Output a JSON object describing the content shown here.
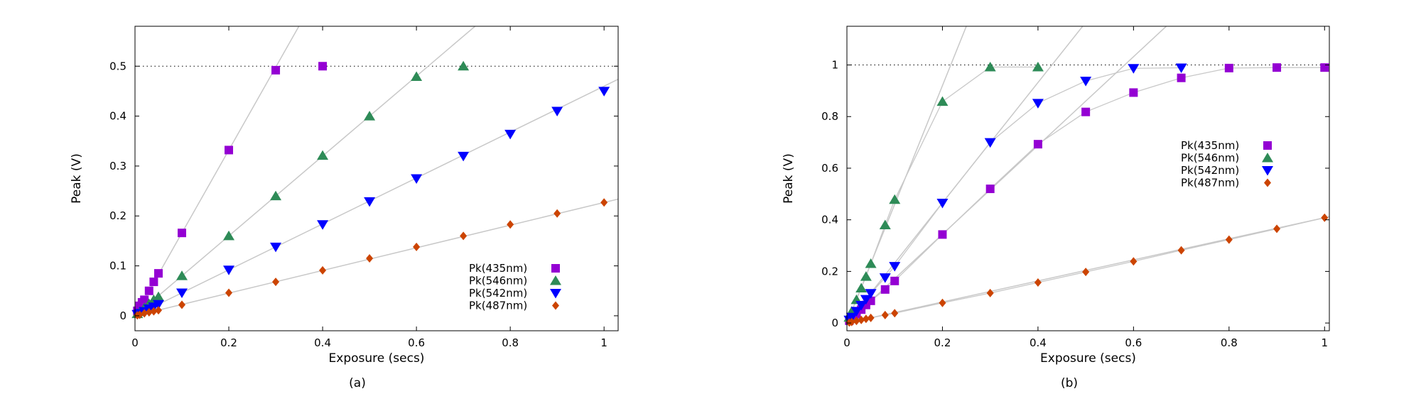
{
  "colors": {
    "Pk(435nm)": "#9400d3",
    "Pk(546nm)": "#2e8b57",
    "Pk(542nm)": "#0000ff",
    "Pk(487nm)": "#cc4400",
    "fit_line": "#c8c8c8",
    "reference_line": "#000000"
  },
  "chart_data": [
    {
      "type": "scatter",
      "caption": "(a)",
      "xlabel": "Exposure (secs)",
      "ylabel": "Peak (V)",
      "xlim": [
        0,
        1.03
      ],
      "ylim": [
        -0.03,
        0.58
      ],
      "xticks": [
        0,
        0.2,
        0.4,
        0.6,
        0.8,
        1
      ],
      "xtick_labels": [
        "0",
        "0.2",
        "0.4",
        "0.6",
        "0.8",
        "1"
      ],
      "yticks": [
        0,
        0.1,
        0.2,
        0.3,
        0.4,
        0.5
      ],
      "ytick_labels": [
        "0",
        "0.1",
        "0.2",
        "0.3",
        "0.4",
        "0.5"
      ],
      "reference_y": 0.5,
      "legend_position": "bottom-right",
      "series": [
        {
          "name": "Pk(435nm)",
          "marker": "square",
          "x": [
            0.005,
            0.01,
            0.015,
            0.02,
            0.03,
            0.04,
            0.05,
            0.1,
            0.2,
            0.3,
            0.4
          ],
          "y": [
            0.01,
            0.02,
            0.027,
            0.032,
            0.05,
            0.068,
            0.085,
            0.166,
            0.332,
            0.492,
            0.5
          ],
          "fit_slope": 1.66
        },
        {
          "name": "Pk(546nm)",
          "marker": "triangle-up",
          "x": [
            0.005,
            0.01,
            0.02,
            0.03,
            0.04,
            0.05,
            0.1,
            0.2,
            0.3,
            0.4,
            0.5,
            0.6,
            0.7
          ],
          "y": [
            0.004,
            0.008,
            0.016,
            0.024,
            0.032,
            0.038,
            0.08,
            0.16,
            0.24,
            0.321,
            0.4,
            0.479,
            0.5
          ],
          "fit_slope": 0.8
        },
        {
          "name": "Pk(542nm)",
          "marker": "triangle-down",
          "x": [
            0.005,
            0.01,
            0.02,
            0.03,
            0.04,
            0.05,
            0.1,
            0.2,
            0.3,
            0.4,
            0.5,
            0.6,
            0.7,
            0.8,
            0.9,
            1.0
          ],
          "y": [
            0.003,
            0.005,
            0.009,
            0.014,
            0.018,
            0.023,
            0.046,
            0.092,
            0.138,
            0.183,
            0.229,
            0.275,
            0.32,
            0.364,
            0.41,
            0.45
          ],
          "fit_slope": 0.46
        },
        {
          "name": "Pk(487nm)",
          "marker": "diamond",
          "x": [
            0.005,
            0.01,
            0.02,
            0.03,
            0.04,
            0.05,
            0.1,
            0.2,
            0.3,
            0.4,
            0.5,
            0.6,
            0.7,
            0.8,
            0.9,
            1.0
          ],
          "y": [
            0.001,
            0.002,
            0.005,
            0.007,
            0.009,
            0.011,
            0.022,
            0.046,
            0.068,
            0.091,
            0.115,
            0.138,
            0.16,
            0.183,
            0.205,
            0.227
          ],
          "fit_slope": 0.227
        }
      ]
    },
    {
      "type": "scatter",
      "caption": "(b)",
      "xlabel": "Exposure (secs)",
      "ylabel": "Peak (V)",
      "xlim": [
        0,
        1.01
      ],
      "ylim": [
        -0.03,
        1.15
      ],
      "xticks": [
        0,
        0.2,
        0.4,
        0.6,
        0.8,
        1
      ],
      "xtick_labels": [
        "0",
        "0.2",
        "0.4",
        "0.6",
        "0.8",
        "1"
      ],
      "yticks": [
        0,
        0.2,
        0.4,
        0.6,
        0.8,
        1
      ],
      "ytick_labels": [
        "0",
        "0.2",
        "0.4",
        "0.6",
        "0.8",
        "1"
      ],
      "reference_y": 1.0,
      "legend_position": "center-right",
      "series": [
        {
          "name": "Pk(435nm)",
          "marker": "square",
          "x": [
            0.005,
            0.01,
            0.02,
            0.03,
            0.04,
            0.05,
            0.08,
            0.1,
            0.2,
            0.3,
            0.4,
            0.5,
            0.6,
            0.7,
            0.8,
            0.9,
            1.0
          ],
          "y": [
            0.009,
            0.017,
            0.034,
            0.052,
            0.07,
            0.086,
            0.13,
            0.163,
            0.343,
            0.52,
            0.693,
            0.818,
            0.893,
            0.95,
            0.988,
            0.99,
            0.99
          ],
          "fit_slope": 1.72
        },
        {
          "name": "Pk(546nm)",
          "marker": "triangle-up",
          "x": [
            0.005,
            0.01,
            0.02,
            0.03,
            0.04,
            0.05,
            0.08,
            0.1,
            0.2,
            0.3,
            0.4
          ],
          "y": [
            0.022,
            0.045,
            0.09,
            0.135,
            0.18,
            0.23,
            0.38,
            0.478,
            0.858,
            0.992,
            0.992
          ],
          "fit_slope": 4.6
        },
        {
          "name": "Pk(542nm)",
          "marker": "triangle-down",
          "x": [
            0.005,
            0.01,
            0.02,
            0.03,
            0.04,
            0.05,
            0.08,
            0.1,
            0.2,
            0.3,
            0.4,
            0.5,
            0.6,
            0.7
          ],
          "y": [
            0.012,
            0.023,
            0.046,
            0.069,
            0.092,
            0.115,
            0.176,
            0.22,
            0.465,
            0.7,
            0.852,
            0.938,
            0.987,
            0.989
          ],
          "fit_slope": 2.33
        },
        {
          "name": "Pk(487nm)",
          "marker": "diamond",
          "x": [
            0.005,
            0.01,
            0.02,
            0.03,
            0.04,
            0.05,
            0.08,
            0.1,
            0.2,
            0.3,
            0.4,
            0.5,
            0.6,
            0.7,
            0.8,
            0.9,
            1.0
          ],
          "y": [
            0.002,
            0.004,
            0.008,
            0.012,
            0.016,
            0.02,
            0.031,
            0.038,
            0.078,
            0.116,
            0.157,
            0.198,
            0.239,
            0.282,
            0.323,
            0.365,
            0.408
          ],
          "fit_slope": 0.408
        }
      ]
    }
  ]
}
